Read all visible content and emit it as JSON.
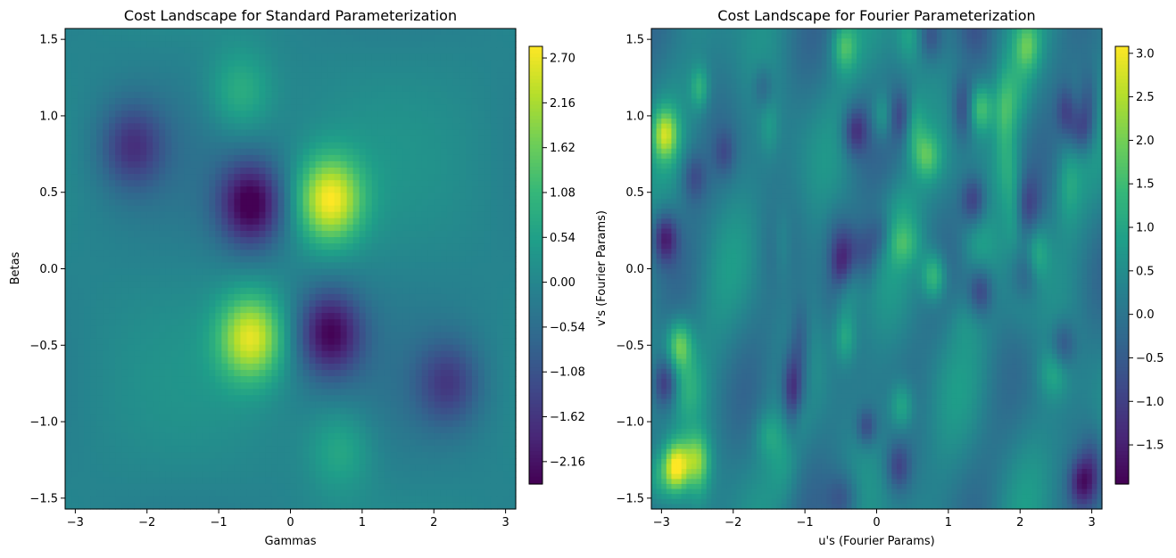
{
  "chart_data": [
    {
      "type": "heatmap",
      "title": "Cost Landscape for Standard Parameterization",
      "xlabel": "Gammas",
      "ylabel": "Betas",
      "xlim": [
        -3.1416,
        3.1416
      ],
      "ylim": [
        -1.5708,
        1.5708
      ],
      "x_ticks": [
        -3,
        -2,
        -1,
        0,
        1,
        2,
        3
      ],
      "x_tick_labels": [
        "−3",
        "−2",
        "−1",
        "0",
        "1",
        "2",
        "3"
      ],
      "y_ticks": [
        -1.5,
        -1.0,
        -0.5,
        0.0,
        0.5,
        1.0,
        1.5
      ],
      "y_tick_labels": [
        "−1.5",
        "−1.0",
        "−0.5",
        "0.0",
        "0.5",
        "1.0",
        "1.5"
      ],
      "colormap": "viridis",
      "colorbar": {
        "vmin": -2.43,
        "vmax": 2.84,
        "ticks": [
          2.7,
          2.16,
          1.62,
          1.08,
          0.54,
          0.0,
          -0.54,
          -1.08,
          -1.62,
          -2.16
        ],
        "tick_labels": [
          "2.70",
          "2.16",
          "1.62",
          "1.08",
          "0.54",
          "0.00",
          "−0.54",
          "−1.08",
          "−1.62",
          "−2.16"
        ]
      },
      "features": [
        {
          "x": 0.55,
          "y": 0.45,
          "value": 2.75
        },
        {
          "x": -0.55,
          "y": -0.45,
          "value": 2.55
        },
        {
          "x": -0.55,
          "y": 0.42,
          "value": -2.4
        },
        {
          "x": 0.55,
          "y": -0.42,
          "value": -2.2
        },
        {
          "x": -2.2,
          "y": 0.8,
          "value": -1.45
        },
        {
          "x": 2.2,
          "y": -0.75,
          "value": -1.3
        },
        {
          "x": -0.7,
          "y": 1.15,
          "value": 1.0
        },
        {
          "x": 0.7,
          "y": -1.18,
          "value": 0.85
        }
      ]
    },
    {
      "type": "heatmap",
      "title": "Cost Landscape for Fourier Parameterization",
      "xlabel": "u's (Fourier Params)",
      "ylabel": "v's (Fourier Params)",
      "xlim": [
        -3.1416,
        3.1416
      ],
      "ylim": [
        -1.5708,
        1.5708
      ],
      "x_ticks": [
        -3,
        -2,
        -1,
        0,
        1,
        2,
        3
      ],
      "x_tick_labels": [
        "−3",
        "−2",
        "−1",
        "0",
        "1",
        "2",
        "3"
      ],
      "y_ticks": [
        -1.5,
        -1.0,
        -0.5,
        0.0,
        0.5,
        1.0,
        1.5
      ],
      "y_tick_labels": [
        "−1.5",
        "−1.0",
        "−0.5",
        "0.0",
        "0.5",
        "1.0",
        "1.5"
      ],
      "colormap": "viridis",
      "colorbar": {
        "vmin": -1.95,
        "vmax": 3.08,
        "ticks": [
          3.0,
          2.5,
          2.0,
          1.5,
          1.0,
          0.5,
          0.0,
          -0.5,
          -1.0,
          -1.5
        ],
        "tick_labels": [
          "3.0",
          "2.5",
          "2.0",
          "1.5",
          "1.0",
          "0.5",
          "0.0",
          "−0.5",
          "−1.0",
          "−1.5"
        ]
      },
      "features": [
        {
          "x": -2.8,
          "y": -1.3,
          "value": 3.05
        },
        {
          "x": -2.95,
          "y": 0.88,
          "value": 2.2
        },
        {
          "x": -2.75,
          "y": -0.5,
          "value": 1.9
        },
        {
          "x": 1.45,
          "y": 1.05,
          "value": 1.6
        },
        {
          "x": 0.8,
          "y": -0.05,
          "value": 1.7
        },
        {
          "x": -0.45,
          "y": 1.45,
          "value": 1.4
        },
        {
          "x": 2.1,
          "y": 1.45,
          "value": 1.2
        },
        {
          "x": 0.1,
          "y": 1.0,
          "value": 1.3
        },
        {
          "x": 0.35,
          "y": -0.9,
          "value": 1.2
        },
        {
          "x": -2.95,
          "y": 0.2,
          "value": -1.85
        },
        {
          "x": -0.5,
          "y": -0.0,
          "value": -1.75
        },
        {
          "x": -2.95,
          "y": -0.75,
          "value": -1.6
        },
        {
          "x": -0.3,
          "y": 0.9,
          "value": -1.5
        },
        {
          "x": 1.35,
          "y": 0.45,
          "value": -1.4
        },
        {
          "x": 1.45,
          "y": -0.15,
          "value": -1.35
        },
        {
          "x": 2.85,
          "y": 0.9,
          "value": -1.3
        },
        {
          "x": 2.85,
          "y": -1.4,
          "value": -1.5
        },
        {
          "x": 0.3,
          "y": -1.3,
          "value": -1.2
        },
        {
          "x": 2.6,
          "y": -0.5,
          "value": -1.1
        },
        {
          "x": -2.55,
          "y": 0.6,
          "value": -1.0
        },
        {
          "x": 0.75,
          "y": 1.52,
          "value": -1.0
        }
      ]
    }
  ]
}
